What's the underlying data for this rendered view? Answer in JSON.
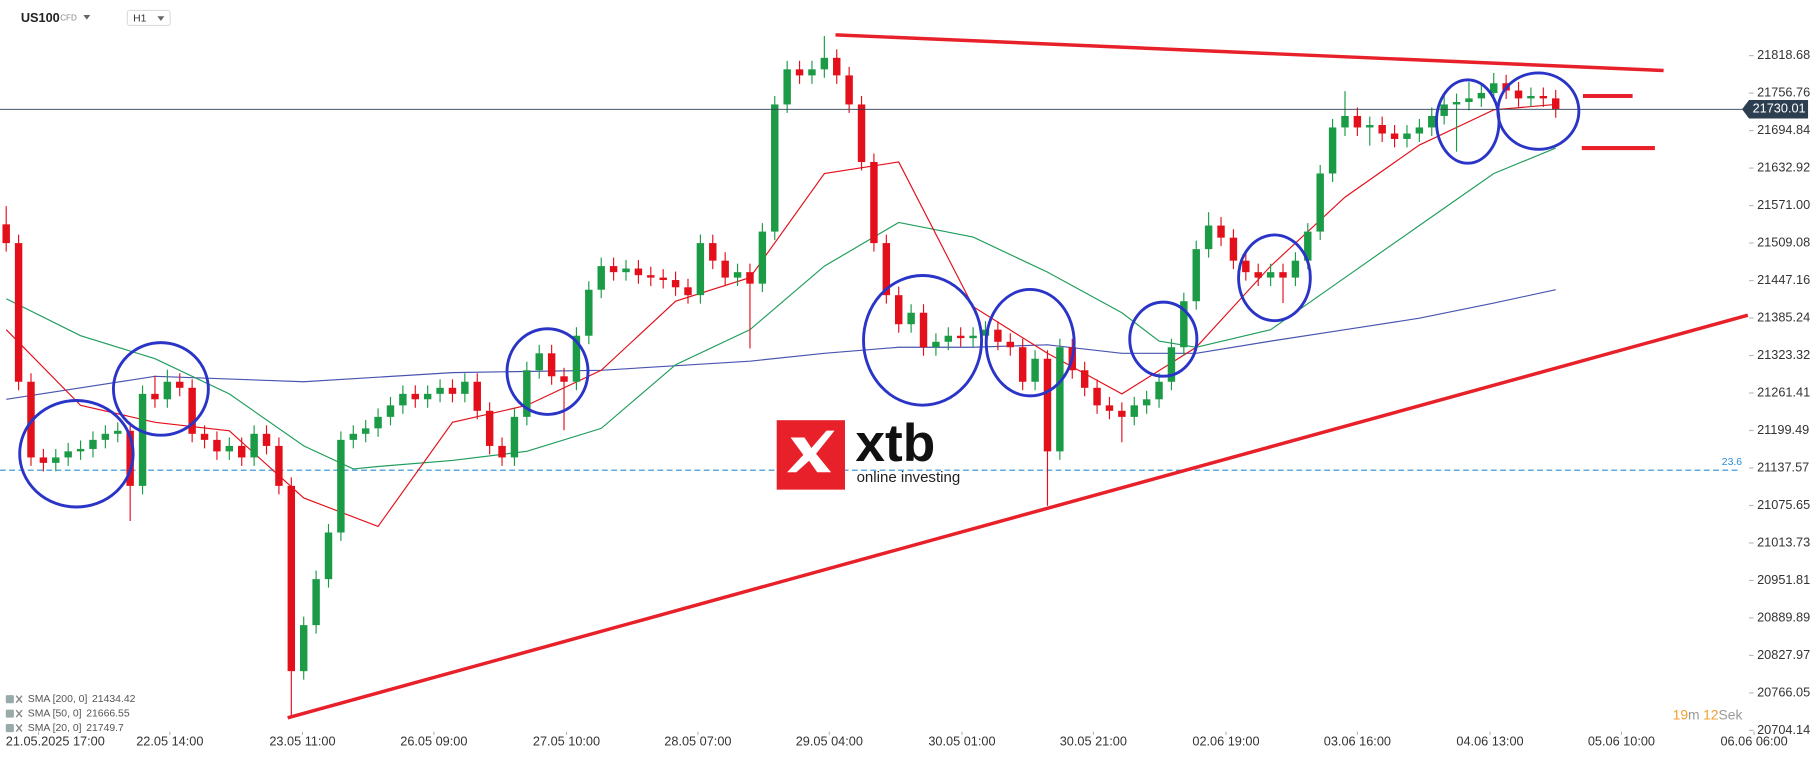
{
  "header": {
    "symbol": "US100",
    "instrument": "CFD",
    "timeframe": "H1"
  },
  "watermark": {
    "brand": "xtb",
    "tagline": "online investing"
  },
  "countdown": [
    "19",
    "m",
    "12",
    "Sek"
  ],
  "chart_data": {
    "type": "candlestick",
    "up_color": "#1c9b47",
    "down_color": "#e3101b",
    "open": [
      21540,
      21509,
      21280,
      21155,
      21146,
      21155,
      21165,
      21169,
      21184,
      21194,
      21199,
      21108,
      21260,
      21251,
      21280,
      21270,
      21194,
      21184,
      21165,
      21174,
      21155,
      21194,
      21174,
      21108,
      20802,
      20878,
      20954,
      21031,
      21184,
      21194,
      21203,
      21222,
      21241,
      21260,
      21251,
      21260,
      21270,
      21260,
      21280,
      21232,
      21174,
      21155,
      21222,
      21299,
      21327,
      21289,
      21280,
      21356,
      21432,
      21471,
      21461,
      21467,
      21456,
      21452,
      21448,
      21436,
      21423,
      21509,
      21480,
      21452,
      21461,
      21442,
      21528,
      21738,
      21796,
      21786,
      21796,
      21815,
      21786,
      21738,
      21643,
      21509,
      21423,
      21375,
      21394,
      21337,
      21346,
      21356,
      21352,
      21356,
      21366,
      21346,
      21337,
      21280,
      21318,
      21165,
      21337,
      21299,
      21270,
      21241,
      21232,
      21222,
      21241,
      21251,
      21280,
      21337,
      21413,
      21499,
      21538,
      21518,
      21480,
      21461,
      21452,
      21461,
      21452,
      21480,
      21528,
      21624,
      21700,
      21719,
      21700,
      21704,
      21690,
      21681,
      21690,
      21700,
      21719,
      21738,
      21742,
      21748,
      21757,
      21773,
      21761,
      21748,
      21752,
      21748
    ],
    "high": [
      21570,
      21523,
      21294,
      21169,
      21169,
      21179,
      21183,
      21198,
      21208,
      21213,
      21213,
      21274,
      21290,
      21300,
      21294,
      21284,
      21208,
      21198,
      21188,
      21188,
      21208,
      21208,
      21188,
      21122,
      20892,
      20968,
      21045,
      21198,
      21208,
      21217,
      21236,
      21255,
      21274,
      21274,
      21274,
      21284,
      21284,
      21294,
      21294,
      21246,
      21188,
      21236,
      21313,
      21341,
      21341,
      21303,
      21370,
      21446,
      21485,
      21485,
      21481,
      21481,
      21470,
      21466,
      21462,
      21450,
      21523,
      21523,
      21494,
      21475,
      21475,
      21542,
      21752,
      21810,
      21810,
      21810,
      21851,
      21829,
      21800,
      21752,
      21657,
      21523,
      21437,
      21408,
      21408,
      21360,
      21370,
      21370,
      21370,
      21380,
      21380,
      21360,
      21351,
      21332,
      21332,
      21351,
      21351,
      21313,
      21284,
      21255,
      21246,
      21255,
      21265,
      21294,
      21351,
      21427,
      21513,
      21560,
      21552,
      21532,
      21494,
      21475,
      21475,
      21475,
      21494,
      21542,
      21638,
      21714,
      21760,
      21733,
      21718,
      21718,
      21704,
      21704,
      21714,
      21733,
      21752,
      21756,
      21775,
      21771,
      21790,
      21787,
      21775,
      21766,
      21766,
      21762
    ],
    "low": [
      21495,
      21266,
      21141,
      21132,
      21132,
      21141,
      21151,
      21155,
      21170,
      21180,
      21050,
      21094,
      21237,
      21237,
      21256,
      21180,
      21170,
      21151,
      21151,
      21141,
      21141,
      21160,
      21094,
      20725,
      20788,
      20864,
      20940,
      21017,
      21170,
      21180,
      21189,
      21208,
      21227,
      21237,
      21237,
      21246,
      21246,
      21246,
      21218,
      21160,
      21141,
      21141,
      21208,
      21285,
      21275,
      21200,
      21266,
      21342,
      21418,
      21447,
      21447,
      21442,
      21438,
      21434,
      21422,
      21409,
      21409,
      21466,
      21438,
      21438,
      21335,
      21428,
      21514,
      21724,
      21772,
      21772,
      21782,
      21772,
      21724,
      21629,
      21495,
      21409,
      21361,
      21361,
      21323,
      21323,
      21332,
      21338,
      21338,
      21342,
      21332,
      21323,
      21266,
      21266,
      21075,
      21151,
      21285,
      21256,
      21227,
      21218,
      21180,
      21208,
      21227,
      21237,
      21266,
      21323,
      21399,
      21485,
      21504,
      21466,
      21447,
      21438,
      21438,
      21410,
      21438,
      21466,
      21514,
      21610,
      21686,
      21686,
      21670,
      21676,
      21667,
      21667,
      21676,
      21686,
      21705,
      21660,
      21728,
      21734,
      21743,
      21747,
      21734,
      21734,
      21734,
      21716
    ],
    "close": [
      21509,
      21280,
      21155,
      21146,
      21155,
      21165,
      21169,
      21184,
      21194,
      21199,
      21108,
      21260,
      21251,
      21280,
      21270,
      21194,
      21184,
      21165,
      21174,
      21155,
      21194,
      21174,
      21108,
      20802,
      20878,
      20954,
      21031,
      21184,
      21194,
      21203,
      21222,
      21241,
      21260,
      21251,
      21260,
      21270,
      21260,
      21280,
      21232,
      21174,
      21155,
      21222,
      21299,
      21327,
      21289,
      21280,
      21356,
      21432,
      21471,
      21461,
      21467,
      21456,
      21452,
      21448,
      21436,
      21423,
      21509,
      21480,
      21452,
      21461,
      21442,
      21528,
      21738,
      21796,
      21786,
      21796,
      21815,
      21786,
      21738,
      21643,
      21509,
      21423,
      21375,
      21394,
      21337,
      21346,
      21356,
      21352,
      21356,
      21366,
      21346,
      21337,
      21280,
      21318,
      21165,
      21337,
      21299,
      21270,
      21241,
      21232,
      21222,
      21241,
      21251,
      21280,
      21337,
      21413,
      21499,
      21538,
      21518,
      21480,
      21461,
      21452,
      21461,
      21452,
      21480,
      21528,
      21624,
      21700,
      21719,
      21700,
      21704,
      21690,
      21681,
      21690,
      21700,
      21719,
      21738,
      21742,
      21748,
      21757,
      21773,
      21761,
      21748,
      21752,
      21748,
      21730
    ],
    "xlim": [
      -0.5,
      140.5
    ],
    "xticks": [
      {
        "value": 2.6,
        "label": "21.05.2025 17:00"
      },
      {
        "value": 13.2,
        "label": "22.05 14:00"
      },
      {
        "value": 23.9,
        "label": "23.05 11:00"
      },
      {
        "value": 34.5,
        "label": "26.05 09:00"
      },
      {
        "value": 45.2,
        "label": "27.05 10:00"
      },
      {
        "value": 55.8,
        "label": "28.05 07:00"
      },
      {
        "value": 66.4,
        "label": "29.05 04:00"
      },
      {
        "value": 77.1,
        "label": "30.05 01:00"
      },
      {
        "value": 87.7,
        "label": "30.05 21:00"
      },
      {
        "value": 98.4,
        "label": "02.06 19:00"
      },
      {
        "value": 109.0,
        "label": "03.06 16:00"
      },
      {
        "value": 119.7,
        "label": "04.06 13:00"
      },
      {
        "value": 130.3,
        "label": "05.06 10:00"
      },
      {
        "value": 141.0,
        "label": "06.06 06:00"
      }
    ],
    "ylim": [
      20704.14,
      21910.5
    ],
    "yticks": [
      21818.68,
      21756.76,
      21694.84,
      21632.92,
      {
        "value": 21571,
        "label": "21571.00"
      },
      21509.08,
      21447.16,
      21385.24,
      21323.32,
      21261.41,
      21199.49,
      21137.57,
      21075.65,
      21013.73,
      20951.81,
      20889.89,
      20827.97,
      20766.05,
      20704.14
    ],
    "last_price": 21730.01,
    "overlays": [
      {
        "name": "SMA [200, 0]",
        "legend_value": 21434.42,
        "color": "#4a55b0",
        "x": [
          0,
          12,
          24,
          36,
          48,
          60,
          66,
          72,
          78,
          84,
          90,
          96,
          102,
          108,
          114,
          120,
          125
        ],
        "values": [
          21251,
          21289,
          21280,
          21295,
          21299,
          21314,
          21327,
          21337,
          21337,
          21341,
          21327,
          21327,
          21347,
          21366,
          21385,
          21410,
          21432
        ]
      },
      {
        "name": "SMA [50, 0]",
        "legend_value": 21666.55,
        "color": "#1f9d5c",
        "x": [
          0,
          6,
          12,
          18,
          24,
          28,
          30,
          36,
          42,
          48,
          54,
          60,
          66,
          72,
          78,
          84,
          90,
          93,
          96,
          102,
          108,
          114,
          120,
          125
        ],
        "values": [
          21417,
          21356,
          21318,
          21260,
          21174,
          21136,
          21140,
          21150,
          21165,
          21203,
          21308,
          21366,
          21471,
          21543,
          21519,
          21461,
          21394,
          21347,
          21337,
          21366,
          21452,
          21538,
          21624,
          21666
        ]
      },
      {
        "name": "SMA [20, 0]",
        "legend_value": 21749.7,
        "color": "#e3101b",
        "x": [
          0,
          6,
          12,
          18,
          24,
          30,
          36,
          42,
          48,
          54,
          60,
          66,
          72,
          78,
          84,
          90,
          96,
          102,
          108,
          114,
          120,
          125
        ],
        "values": [
          21366,
          21241,
          21213,
          21199,
          21088,
          21041,
          21213,
          21241,
          21299,
          21413,
          21452,
          21624,
          21643,
          21404,
          21327,
          21260,
          21337,
          21471,
          21585,
          21671,
          21729,
          21738
        ]
      }
    ],
    "trendline_color": "#e8202a",
    "trendlines": [
      {
        "x": [
          66.9,
          133.7
        ],
        "values": [
          21853,
          21794
        ]
      },
      {
        "x": [
          22.7,
          140.5
        ],
        "values": [
          20725,
          21390
        ]
      }
    ],
    "levels": [
      {
        "x": [
          127.2,
          131.2
        ],
        "value": 21752
      },
      {
        "x": [
          127.1,
          133.0
        ],
        "value": 21666
      }
    ],
    "fib_level": {
      "value": 21134,
      "ratio": 23.6,
      "color": "#2a8fd8"
    }
  }
}
